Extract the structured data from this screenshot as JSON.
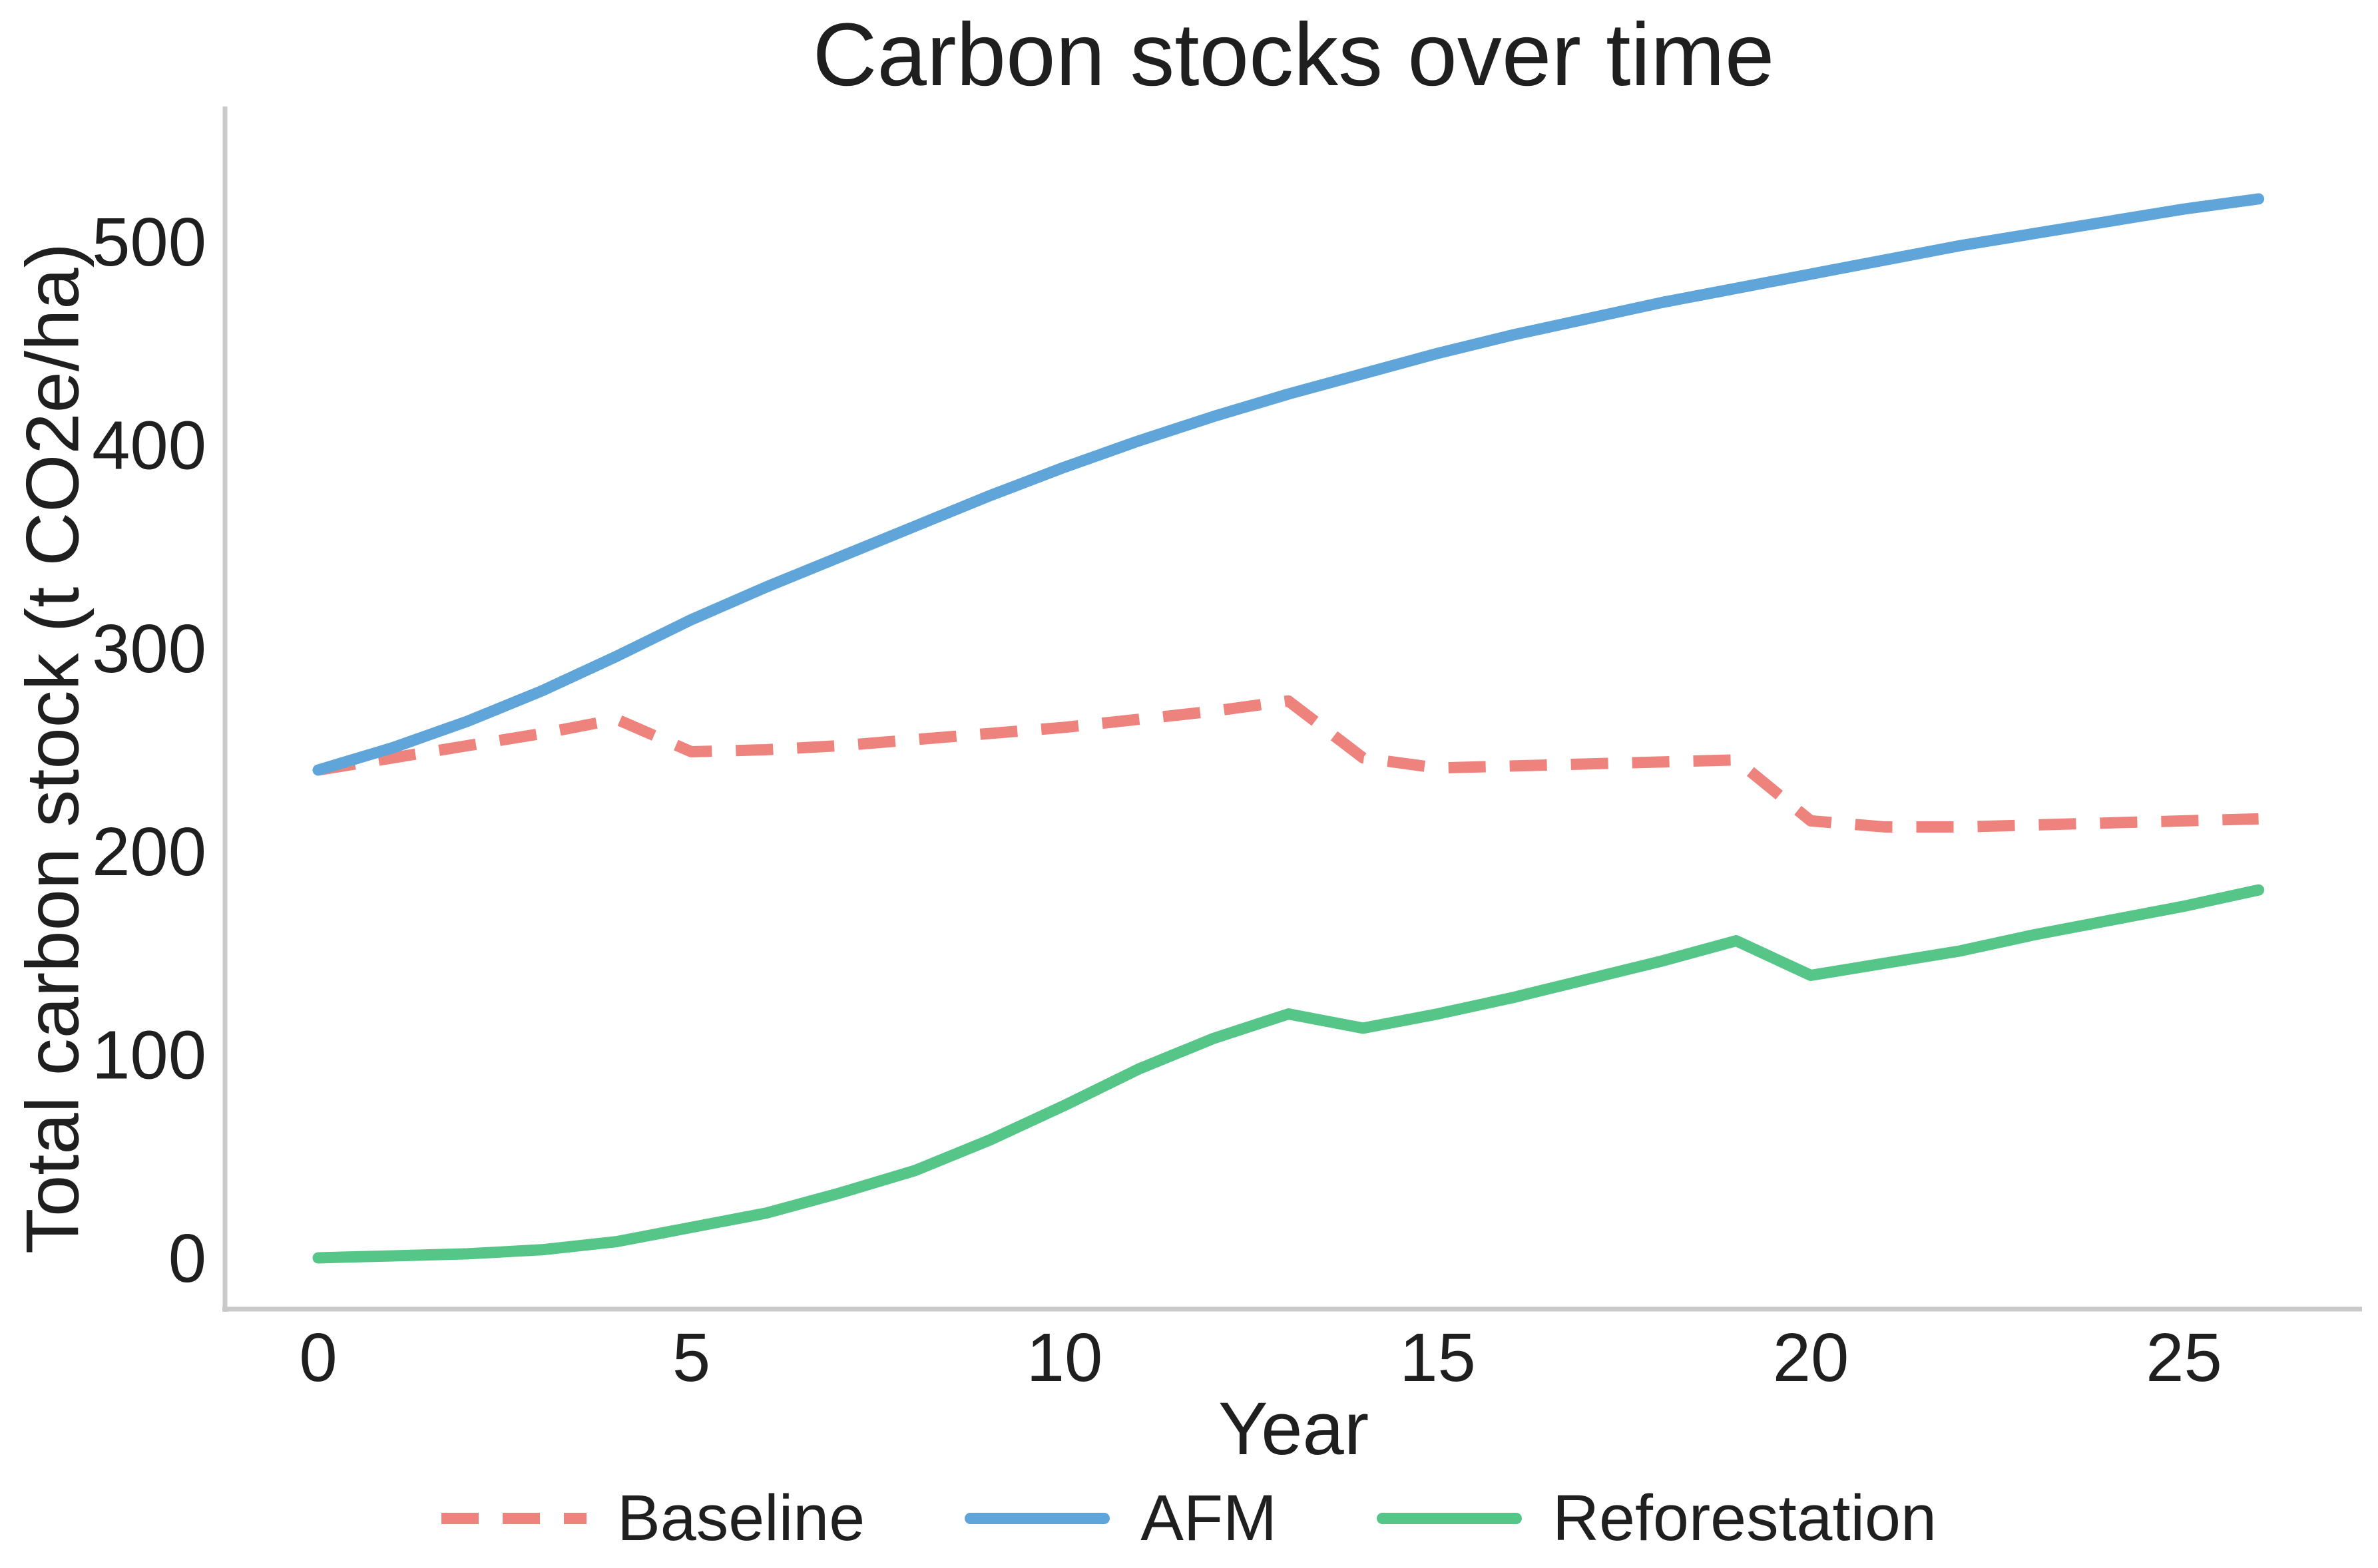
{
  "title": "Carbon stocks over time",
  "axes": {
    "x_label": "Year",
    "y_label": "Total carbon stock (t CO2e/ha)",
    "x_ticks": [
      0,
      5,
      10,
      15,
      20,
      25
    ],
    "y_ticks": [
      0,
      100,
      200,
      300,
      400,
      500
    ]
  },
  "legend": {
    "items": [
      {
        "label": "Baseline",
        "color": "#ee827c",
        "style": "dashed"
      },
      {
        "label": "AFM",
        "color": "#5fa5da",
        "style": "solid"
      },
      {
        "label": "Reforestation",
        "color": "#55c688",
        "style": "solid"
      }
    ]
  },
  "colors": {
    "baseline": "#ee827c",
    "afm": "#5fa5da",
    "reforestation": "#55c688",
    "spine": "#c9c9c9",
    "text": "#1f1f1f"
  },
  "chart_data": {
    "type": "line",
    "title": "Carbon stocks over time",
    "xlabel": "Year",
    "ylabel": "Total carbon stock (t CO2e/ha)",
    "x": [
      0,
      1,
      2,
      3,
      4,
      5,
      6,
      7,
      8,
      9,
      10,
      11,
      12,
      13,
      14,
      15,
      16,
      17,
      18,
      19,
      20,
      21,
      22,
      23,
      24,
      25,
      26
    ],
    "series": [
      {
        "name": "Baseline",
        "color": "#ee827c",
        "style": "dashed",
        "values": [
          240,
          246,
          252,
          258,
          265,
          249,
          250,
          252,
          255,
          258,
          261,
          265,
          269,
          274,
          246,
          241,
          242,
          243,
          244,
          245,
          215,
          212,
          212,
          213,
          214,
          215,
          216
        ]
      },
      {
        "name": "AFM",
        "color": "#5fa5da",
        "style": "solid",
        "values": [
          240,
          251,
          264,
          279,
          296,
          314,
          330,
          345,
          360,
          375,
          389,
          402,
          414,
          425,
          435,
          445,
          454,
          462,
          470,
          477,
          484,
          491,
          498,
          504,
          510,
          516,
          521
        ]
      },
      {
        "name": "Reforestation",
        "color": "#55c688",
        "style": "solid",
        "values": [
          0,
          1,
          2,
          4,
          8,
          15,
          22,
          32,
          43,
          58,
          75,
          93,
          108,
          120,
          113,
          120,
          128,
          137,
          146,
          156,
          139,
          145,
          151,
          159,
          166,
          173,
          181
        ]
      }
    ],
    "xlim": [
      -1.25,
      27.4
    ],
    "ylim": [
      -25,
      566
    ],
    "grid": false,
    "legend_position": "bottom"
  }
}
